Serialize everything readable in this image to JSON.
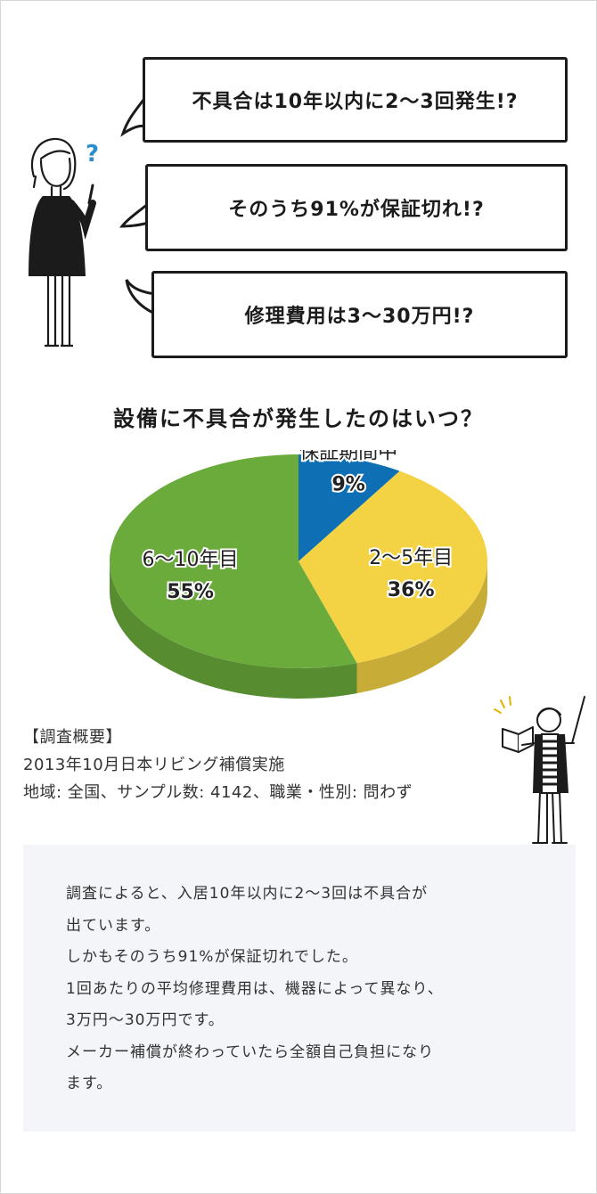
{
  "bubbles": [
    "不具合は10年以内に2〜3回発生!?",
    "そのうち91%が保証切れ!?",
    "修理費用は3〜30万円!?"
  ],
  "question_mark": "?",
  "question": "設備に不具合が発生したのはいつ？",
  "chart_data": {
    "type": "pie",
    "title": "設備に不具合が発生したのはいつ？",
    "slices": [
      {
        "label": "保証期間中",
        "value": 9,
        "display": "9%",
        "color": "#0f6fb5"
      },
      {
        "label": "2〜5年目",
        "value": 36,
        "display": "36%",
        "color": "#f3d343"
      },
      {
        "label": "6〜10年目",
        "value": 55,
        "display": "55%",
        "color": "#6bab3c"
      }
    ]
  },
  "survey": {
    "heading": "【調査概要】",
    "line1": "2013年10月日本リビング補償実施",
    "line2": "地域: 全国、サンプル数: 4142、職業・性別: 問わず"
  },
  "summary": [
    "調査によると、入居10年以内に2〜3回は不具合が",
    "出ています。",
    "しかもそのうち91%が保証切れでした。",
    "1回あたりの平均修理費用は、機器によって異なり、",
    "3万円〜30万円です。",
    "メーカー補償が終わっていたら全額自己負担になり",
    "ます。"
  ]
}
